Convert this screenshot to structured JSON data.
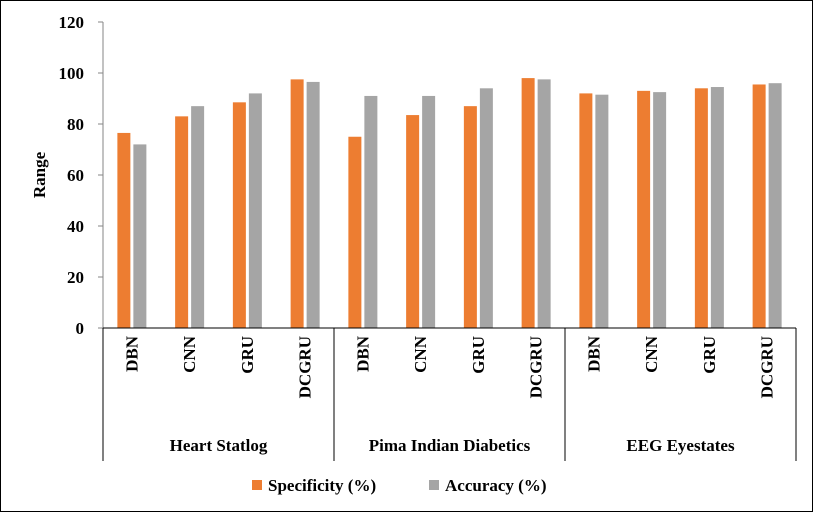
{
  "chart_data": {
    "type": "bar",
    "title": "",
    "xlabel": "",
    "ylabel": "Range",
    "ylim": [
      0,
      120
    ],
    "yticks": [
      0,
      20,
      40,
      60,
      80,
      100,
      120
    ],
    "groups": [
      {
        "label": "Heart Statlog",
        "categories": [
          "DBN",
          "CNN",
          "GRU",
          "DCGRU"
        ]
      },
      {
        "label": "Pima Indian Diabetics",
        "categories": [
          "DBN",
          "CNN",
          "GRU",
          "DCGRU"
        ]
      },
      {
        "label": "EEG Eyestates",
        "categories": [
          "DBN",
          "CNN",
          "GRU",
          "DCGRU"
        ]
      }
    ],
    "series": [
      {
        "name": "Specificity (%)",
        "color": "#ed7d31",
        "values": [
          76.5,
          83,
          88.5,
          97.5,
          75,
          83.5,
          87,
          98,
          92,
          93,
          94,
          95.5
        ]
      },
      {
        "name": "Accuracy (%)",
        "color": "#a5a5a5",
        "values": [
          72,
          87,
          92,
          96.5,
          91,
          91,
          94,
          97.5,
          91.5,
          92.5,
          94.5,
          96
        ]
      }
    ],
    "legend": "bottom",
    "grid": false
  }
}
